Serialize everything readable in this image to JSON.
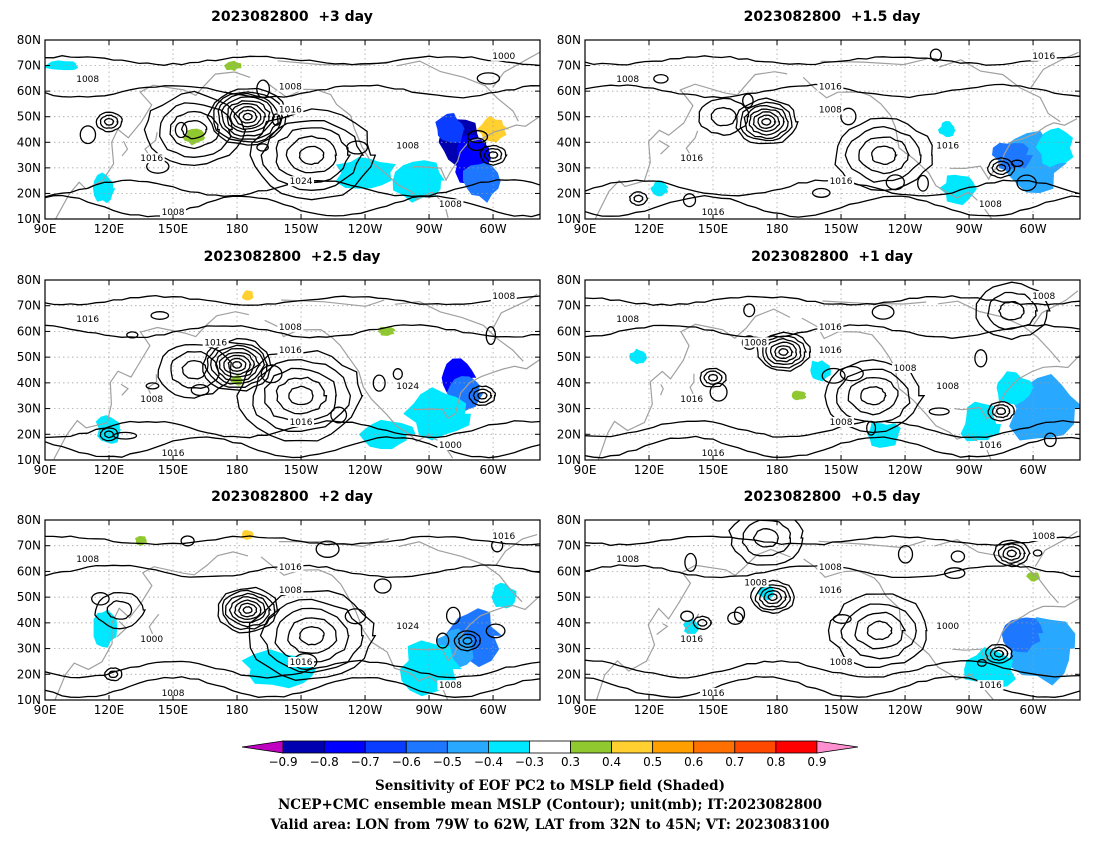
{
  "panels": [
    {
      "title": "2023082800  +3 day",
      "contour_labels": [
        "1008",
        "1008",
        "1016",
        "1016",
        "1024",
        "1008",
        "1008",
        "1000",
        "1008"
      ],
      "lows": [
        {
          "lon": 185,
          "lat": 50,
          "n": 9
        },
        {
          "lon": 120,
          "lat": 48,
          "n": 3
        },
        {
          "lon": 300,
          "lat": 35,
          "n": 3
        }
      ],
      "highs": [
        {
          "lon": 215,
          "lat": 35,
          "n": 5
        },
        {
          "lon": 160,
          "lat": 45,
          "n": 4
        }
      ]
    },
    {
      "title": "2023082800  +1.5 day",
      "contour_labels": [
        "1008",
        "1016",
        "1008",
        "1016",
        "1016",
        "1016",
        "1008",
        "1016",
        "1016"
      ],
      "lows": [
        {
          "lon": 175,
          "lat": 48,
          "n": 7
        },
        {
          "lon": 285,
          "lat": 30,
          "n": 3
        },
        {
          "lon": 115,
          "lat": 18,
          "n": 2
        }
      ],
      "highs": [
        {
          "lon": 230,
          "lat": 35,
          "n": 4
        },
        {
          "lon": 155,
          "lat": 50,
          "n": 2
        }
      ]
    },
    {
      "title": "2023082800  +2.5 day",
      "contour_labels": [
        "1016",
        "1008",
        "1016",
        "1008",
        "1016",
        "1024",
        "1000",
        "1008",
        "1016",
        "1016"
      ],
      "lows": [
        {
          "lon": 180,
          "lat": 47,
          "n": 8
        },
        {
          "lon": 295,
          "lat": 35,
          "n": 3
        },
        {
          "lon": 120,
          "lat": 20,
          "n": 2
        }
      ],
      "highs": [
        {
          "lon": 210,
          "lat": 35,
          "n": 5
        },
        {
          "lon": 160,
          "lat": 45,
          "n": 3
        }
      ]
    },
    {
      "title": "2023082800  +1 day",
      "contour_labels": [
        "1008",
        "1016",
        "1016",
        "1016",
        "1008",
        "1008",
        "1016",
        "1008",
        "1016",
        "1008",
        "1008"
      ],
      "lows": [
        {
          "lon": 183,
          "lat": 52,
          "n": 6
        },
        {
          "lon": 285,
          "lat": 29,
          "n": 3
        },
        {
          "lon": 150,
          "lat": 42,
          "n": 3
        }
      ],
      "highs": [
        {
          "lon": 225,
          "lat": 35,
          "n": 4
        },
        {
          "lon": 290,
          "lat": 68,
          "n": 3
        }
      ]
    },
    {
      "title": "2023082800  +2 day",
      "contour_labels": [
        "1008",
        "1016",
        "1008",
        "1000",
        "1016",
        "1024",
        "1008",
        "1016",
        "1008"
      ],
      "lows": [
        {
          "lon": 185,
          "lat": 45,
          "n": 7
        },
        {
          "lon": 288,
          "lat": 33,
          "n": 3
        },
        {
          "lon": 122,
          "lat": 20,
          "n": 2
        }
      ],
      "highs": [
        {
          "lon": 215,
          "lat": 35,
          "n": 5
        },
        {
          "lon": 125,
          "lat": 45,
          "n": 2
        }
      ]
    },
    {
      "title": "2023082800  +0.5 day",
      "contour_labels": [
        "1008",
        "1008",
        "1016",
        "1016",
        "1008",
        "1000",
        "1016",
        "1008",
        "1016",
        "1008"
      ],
      "lows": [
        {
          "lon": 178,
          "lat": 50,
          "n": 5
        },
        {
          "lon": 284,
          "lat": 28,
          "n": 3
        },
        {
          "lon": 145,
          "lat": 40,
          "n": 2
        },
        {
          "lon": 290,
          "lat": 67,
          "n": 4
        }
      ],
      "highs": [
        {
          "lon": 228,
          "lat": 37,
          "n": 4
        },
        {
          "lon": 175,
          "lat": 73,
          "n": 3
        }
      ]
    }
  ],
  "axes": {
    "lat_labels": [
      "80N",
      "70N",
      "60N",
      "50N",
      "40N",
      "30N",
      "20N",
      "10N"
    ],
    "lon_labels": [
      "90E",
      "120E",
      "150E",
      "180",
      "150W",
      "120W",
      "90W",
      "60W"
    ],
    "lon_range": [
      90,
      322
    ],
    "lat_range": [
      10,
      80
    ]
  },
  "colorbar": {
    "colors": [
      "#c000c0",
      "#0000b0",
      "#0000ff",
      "#0a3cff",
      "#1e78ff",
      "#28a8ff",
      "#00e8ff",
      "#ffffff",
      "#90c830",
      "#ffd030",
      "#ffa000",
      "#ff7000",
      "#ff4800",
      "#ff0000",
      "#ff90d0"
    ],
    "tick_labels": [
      "-0.9",
      "-0.8",
      "-0.7",
      "-0.6",
      "-0.5",
      "-0.4",
      "-0.3",
      "0.3",
      "0.4",
      "0.5",
      "0.6",
      "0.7",
      "0.8",
      "0.9"
    ]
  },
  "footer": {
    "line1": "Sensitivity of EOF PC2 to MSLP field (Shaded)",
    "line2": "NCEP+CMC ensemble mean MSLP (Contour); unit(mb); IT:2023082800",
    "line3": "Valid area: LON from 79W to 62W, LAT from 32N to 45N; VT: 2023083100"
  }
}
